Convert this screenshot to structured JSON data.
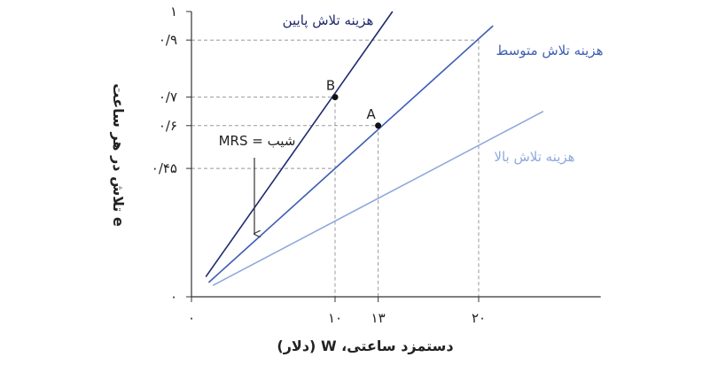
{
  "chart_data": {
    "type": "line",
    "xlabel": "دستمزد ساعتی، W (دلار)",
    "ylabel": "تلاش در هر ساعت e",
    "xlim": [
      0,
      28.5
    ],
    "ylim": [
      0,
      1
    ],
    "x_ticks": [
      {
        "value": 0,
        "label": "۰"
      },
      {
        "value": 10,
        "label": "۱۰"
      },
      {
        "value": 13,
        "label": "۱۳"
      },
      {
        "value": 20,
        "label": "۲۰"
      }
    ],
    "y_ticks": [
      {
        "value": 0,
        "label": "۰"
      },
      {
        "value": 0.45,
        "label": "۰/۴۵"
      },
      {
        "value": 0.6,
        "label": "۰/۶"
      },
      {
        "value": 0.7,
        "label": "۰/۷"
      },
      {
        "value": 0.9,
        "label": "۰/۹"
      },
      {
        "value": 1,
        "label": "۱"
      }
    ],
    "series": [
      {
        "name": "هزینه تلاش پایین",
        "color": "#1f2a6e",
        "x": [
          1,
          14
        ],
        "y": [
          0.07,
          1.0
        ]
      },
      {
        "name": "هزینه تلاش متوسط",
        "color": "#3f5fb4",
        "x": [
          1.2,
          21
        ],
        "y": [
          0.05,
          0.95
        ]
      },
      {
        "name": "هزینه تلاش بالا",
        "color": "#8fa9dc",
        "x": [
          1.5,
          24.5
        ],
        "y": [
          0.04,
          0.65
        ]
      }
    ],
    "points": [
      {
        "label": "B",
        "x": 10,
        "y": 0.7
      },
      {
        "label": "A",
        "x": 13,
        "y": 0.6
      }
    ],
    "guides": [
      {
        "x": 10,
        "y": 0.7
      },
      {
        "x": 13,
        "y": 0.6
      },
      {
        "x": 20,
        "y": 0.9
      },
      {
        "x": 0,
        "y": 0.45,
        "x_end": 10
      }
    ],
    "annotation": {
      "text": "شیب = MRS"
    }
  }
}
